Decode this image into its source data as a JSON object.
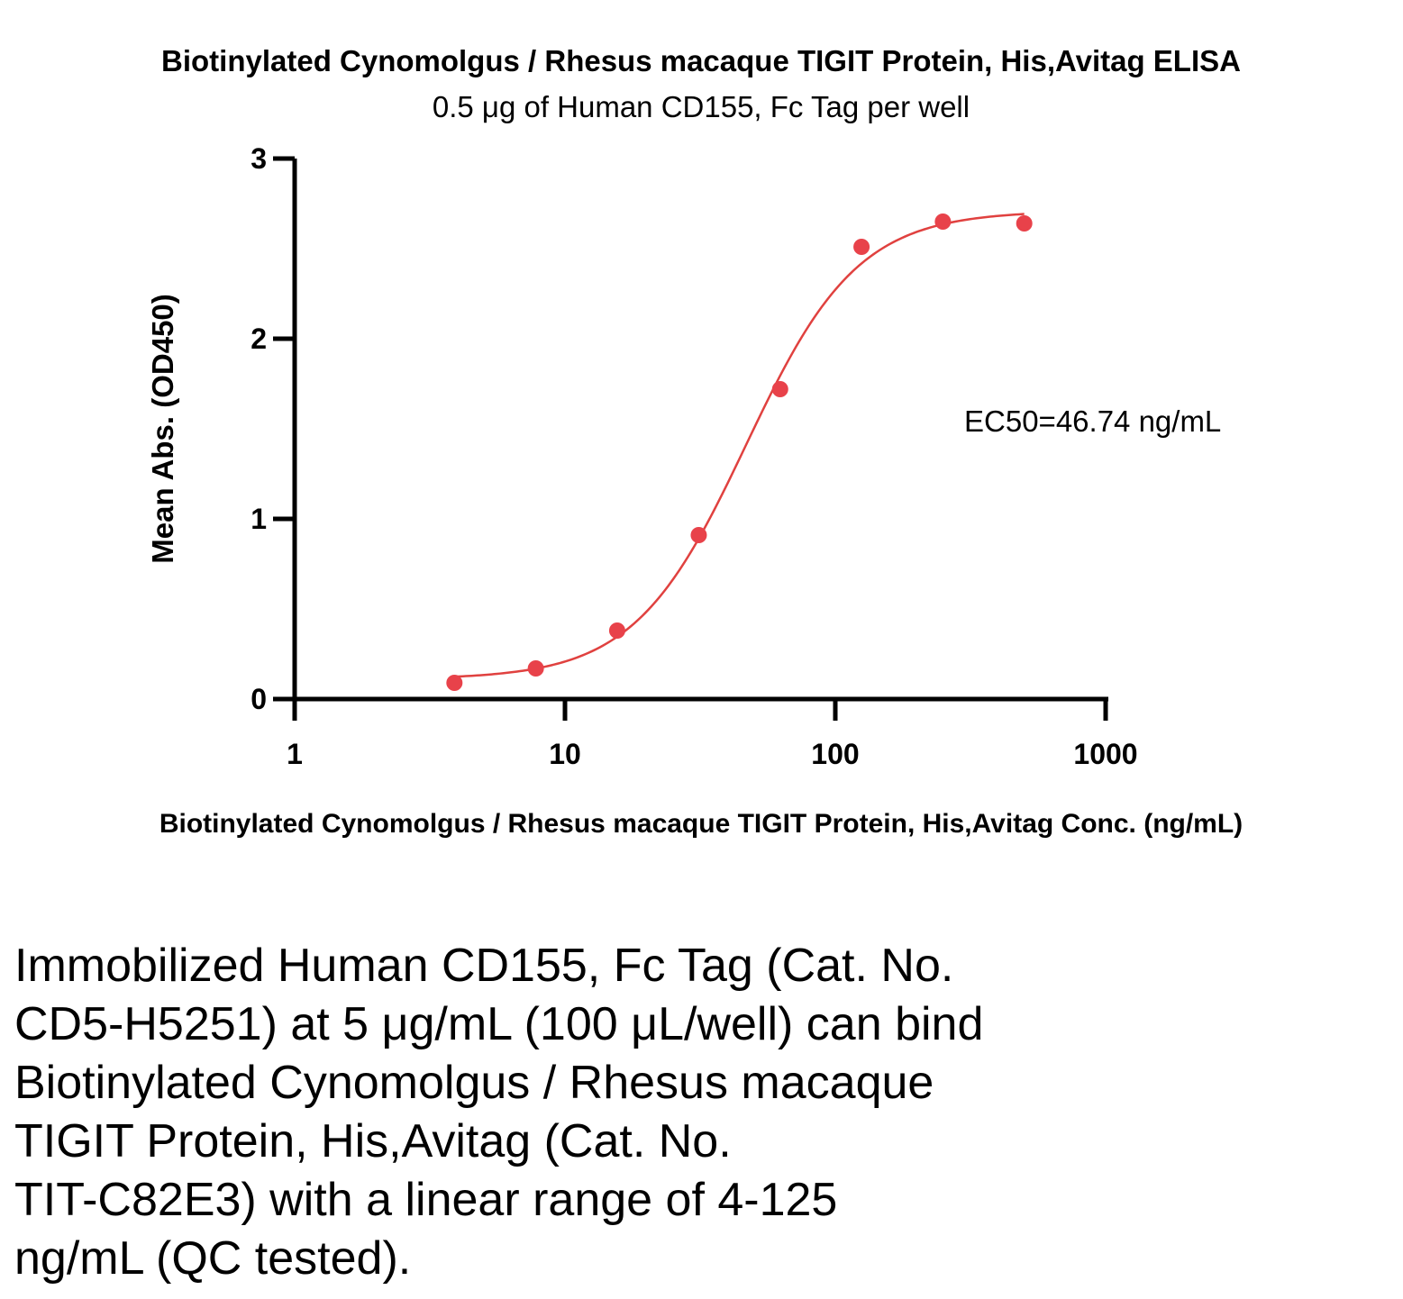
{
  "chart_data": {
    "type": "scatter",
    "title": "Biotinylated Cynomolgus / Rhesus macaque TIGIT Protein, His,Avitag ELISA",
    "subtitle": "0.5 μg of Human CD155, Fc Tag per well",
    "xlabel": "Biotinylated Cynomolgus / Rhesus macaque TIGIT Protein, His,Avitag Conc. (ng/mL)",
    "ylabel": "Mean Abs. (OD450)",
    "xscale": "log",
    "xlim": [
      1,
      1000
    ],
    "ylim": [
      0,
      3
    ],
    "xticks": [
      "1",
      "10",
      "100",
      "1000"
    ],
    "yticks": [
      "0",
      "1",
      "2",
      "3"
    ],
    "grid": false,
    "point_color": "#e8424a",
    "curve_color": "#e0413f",
    "points": [
      {
        "x": 3.9,
        "y": 0.09
      },
      {
        "x": 7.8,
        "y": 0.17
      },
      {
        "x": 15.6,
        "y": 0.38
      },
      {
        "x": 31.25,
        "y": 0.91
      },
      {
        "x": 62.5,
        "y": 1.72
      },
      {
        "x": 125,
        "y": 2.51
      },
      {
        "x": 250,
        "y": 2.65
      },
      {
        "x": 500,
        "y": 2.64
      }
    ],
    "fit": {
      "bottom": 0.11,
      "top": 2.71,
      "ec50": 46.74,
      "hill": 2.1
    },
    "annotation": "EC50=46.74 ng/mL"
  },
  "caption_lines": [
    "Immobilized Human CD155, Fc Tag (Cat. No.",
    "CD5-H5251) at 5 μg/mL (100 μL/well) can bind",
    "Biotinylated Cynomolgus / Rhesus macaque",
    "TIGIT Protein, His,Avitag (Cat. No.",
    "TIT-C82E3) with a linear range of 4-125",
    "ng/mL (QC tested)."
  ]
}
